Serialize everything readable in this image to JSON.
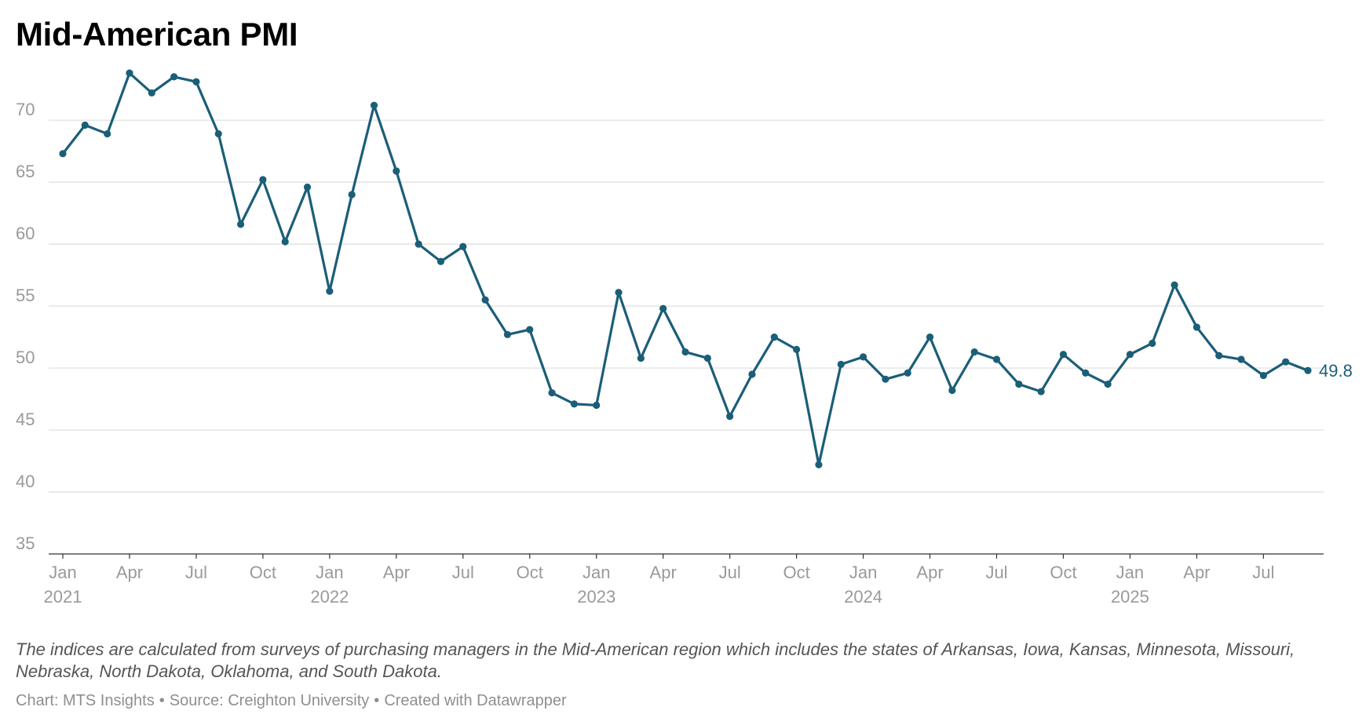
{
  "header": {
    "title": "Mid-American PMI"
  },
  "chart_data": {
    "type": "line",
    "title": "Mid-American PMI",
    "xlabel": "",
    "ylabel": "",
    "ylim": [
      35,
      74
    ],
    "yticks": [
      35,
      40,
      45,
      50,
      55,
      60,
      65,
      70
    ],
    "grid": true,
    "line_color": "#1b5e78",
    "grid_color": "#dddddd",
    "x_tick_labels": [
      {
        "month_index": 0,
        "label": "Jan",
        "year": "2021"
      },
      {
        "month_index": 3,
        "label": "Apr",
        "year": ""
      },
      {
        "month_index": 6,
        "label": "Jul",
        "year": ""
      },
      {
        "month_index": 9,
        "label": "Oct",
        "year": ""
      },
      {
        "month_index": 12,
        "label": "Jan",
        "year": "2022"
      },
      {
        "month_index": 15,
        "label": "Apr",
        "year": ""
      },
      {
        "month_index": 18,
        "label": "Jul",
        "year": ""
      },
      {
        "month_index": 21,
        "label": "Oct",
        "year": ""
      },
      {
        "month_index": 24,
        "label": "Jan",
        "year": "2023"
      },
      {
        "month_index": 27,
        "label": "Apr",
        "year": ""
      },
      {
        "month_index": 30,
        "label": "Jul",
        "year": ""
      },
      {
        "month_index": 33,
        "label": "Oct",
        "year": ""
      },
      {
        "month_index": 36,
        "label": "Jan",
        "year": "2024"
      },
      {
        "month_index": 39,
        "label": "Apr",
        "year": ""
      },
      {
        "month_index": 42,
        "label": "Jul",
        "year": ""
      },
      {
        "month_index": 45,
        "label": "Oct",
        "year": ""
      },
      {
        "month_index": 48,
        "label": "Jan",
        "year": "2025"
      },
      {
        "month_index": 51,
        "label": "Apr",
        "year": ""
      },
      {
        "month_index": 54,
        "label": "Jul",
        "year": ""
      }
    ],
    "x": [
      "2021-01",
      "2021-02",
      "2021-03",
      "2021-04",
      "2021-05",
      "2021-06",
      "2021-07",
      "2021-08",
      "2021-09",
      "2021-10",
      "2021-11",
      "2021-12",
      "2022-01",
      "2022-02",
      "2022-03",
      "2022-04",
      "2022-05",
      "2022-06",
      "2022-07",
      "2022-08",
      "2022-09",
      "2022-10",
      "2022-11",
      "2022-12",
      "2023-01",
      "2023-02",
      "2023-03",
      "2023-04",
      "2023-05",
      "2023-06",
      "2023-07",
      "2023-08",
      "2023-09",
      "2023-10",
      "2023-11",
      "2023-12",
      "2024-01",
      "2024-02",
      "2024-03",
      "2024-04",
      "2024-05",
      "2024-06",
      "2024-07",
      "2024-08",
      "2024-09",
      "2024-10",
      "2024-11",
      "2024-12",
      "2025-01",
      "2025-02",
      "2025-03",
      "2025-04",
      "2025-05",
      "2025-06",
      "2025-07",
      "2025-08",
      "2025-09"
    ],
    "series": [
      {
        "name": "",
        "values": [
          67.3,
          69.6,
          68.9,
          73.8,
          72.2,
          73.5,
          73.1,
          68.9,
          61.6,
          65.2,
          60.2,
          64.6,
          56.2,
          64.0,
          71.2,
          65.9,
          60.0,
          58.6,
          59.8,
          55.5,
          52.7,
          53.1,
          48.0,
          47.1,
          47.0,
          56.1,
          50.8,
          54.8,
          51.3,
          50.8,
          46.1,
          49.5,
          52.5,
          51.5,
          42.2,
          50.3,
          50.9,
          49.1,
          49.6,
          52.5,
          48.2,
          51.3,
          50.7,
          48.7,
          48.1,
          51.1,
          49.6,
          48.7,
          51.1,
          52.0,
          56.7,
          53.3,
          51.0,
          50.7,
          49.4,
          50.5,
          49.8
        ]
      }
    ],
    "end_label": "49.8"
  },
  "notes": "The indices are calculated from surveys of purchasing managers in the Mid-American region which includes the states of Arkansas, Iowa, Kansas, Minnesota, Missouri, Nebraska, North Dakota, Oklahoma, and South Dakota.",
  "footer": {
    "chart_credit": "Chart: MTS Insights",
    "source": "Source: Creighton University",
    "created_with": "Created with Datawrapper",
    "separator": "•"
  }
}
